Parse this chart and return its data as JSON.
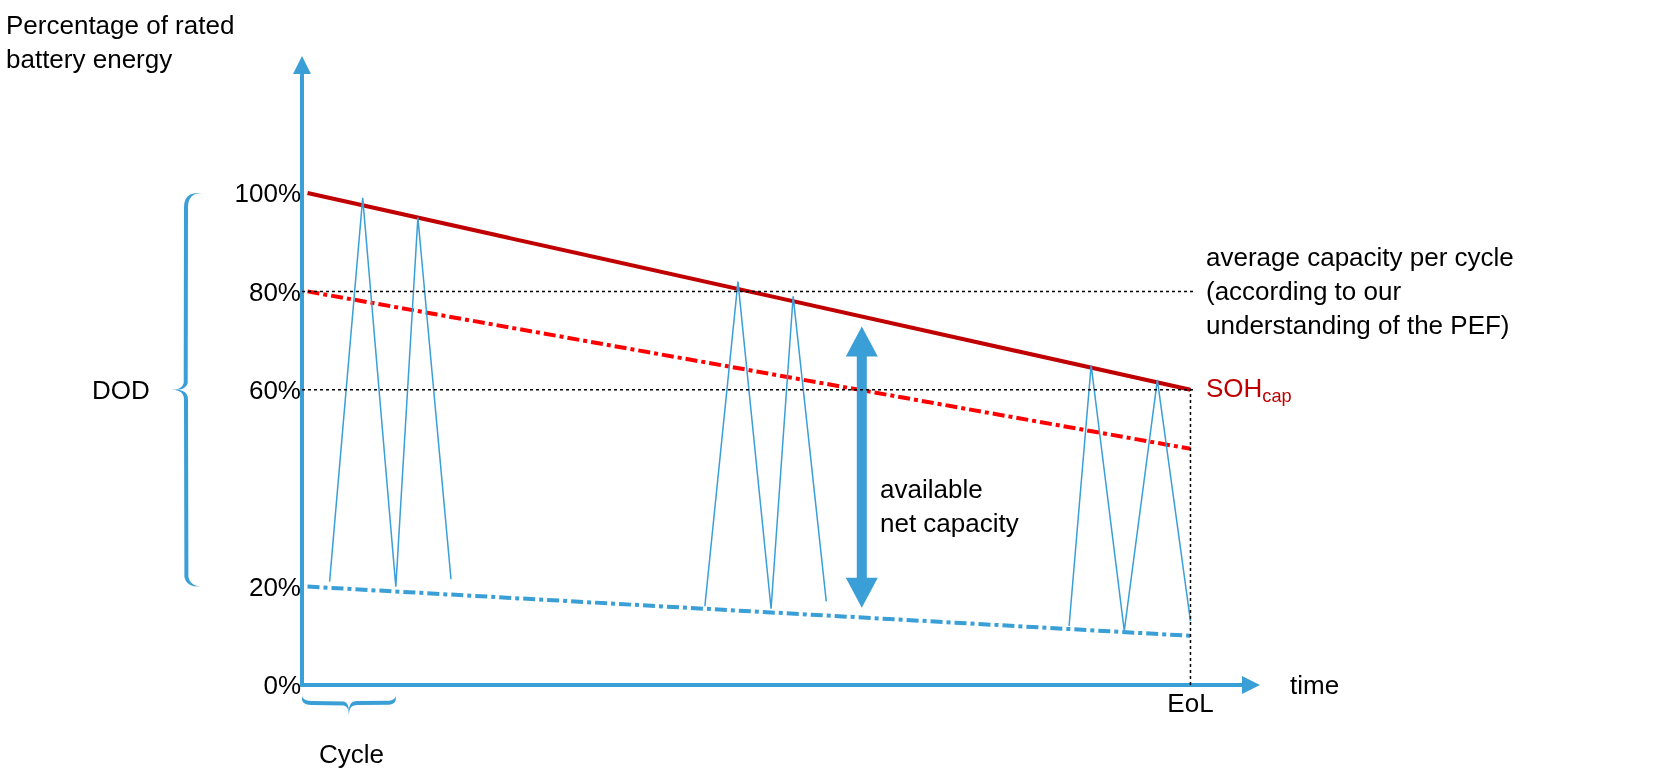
{
  "chart_data": {
    "type": "line",
    "xlabel": "time",
    "ylabel": "Percentage of rated battery energy",
    "categories": [
      null,
      null,
      null,
      null,
      null,
      null,
      null,
      null,
      null,
      null,
      null,
      null,
      null,
      null,
      null,
      null,
      null,
      null,
      null,
      null,
      null,
      null,
      null,
      null,
      null,
      null,
      null,
      null,
      null,
      null,
      null,
      null,
      null,
      null,
      null,
      null,
      null,
      null,
      null,
      null,
      null,
      null,
      null,
      null,
      null,
      null,
      null,
      null,
      null,
      null,
      null,
      null,
      null,
      null,
      null,
      null,
      null,
      null,
      null,
      null,
      null,
      null,
      null,
      null,
      null,
      null,
      null,
      null,
      null,
      null,
      null,
      null,
      null,
      null,
      null,
      null,
      null,
      null,
      null,
      null,
      "EoL"
    ],
    "ylim": [
      0,
      125
    ],
    "yticks": [
      {
        "value": 0,
        "label": "0%"
      },
      {
        "value": 20,
        "label": "20%"
      },
      {
        "value": 60,
        "label": "60%"
      },
      {
        "value": 80,
        "label": "80%"
      },
      {
        "value": 100,
        "label": "100%"
      }
    ],
    "grid": false,
    "legend": false,
    "marker": "none",
    "series": [
      {
        "name": "SOH$_{cap}$",
        "color": "#c00000",
        "line_style": "solid",
        "values": [
          100,
          null,
          null,
          null,
          null,
          null,
          null,
          null,
          null,
          null,
          null,
          null,
          null,
          null,
          null,
          null,
          null,
          null,
          null,
          null,
          null,
          null,
          null,
          null,
          null,
          null,
          null,
          null,
          null,
          null,
          null,
          null,
          null,
          null,
          null,
          null,
          null,
          null,
          null,
          null,
          null,
          null,
          null,
          null,
          null,
          null,
          null,
          null,
          null,
          null,
          null,
          null,
          null,
          null,
          null,
          null,
          null,
          null,
          null,
          null,
          null,
          null,
          null,
          null,
          null,
          null,
          null,
          null,
          null,
          null,
          null,
          null,
          null,
          null,
          null,
          null,
          null,
          null,
          null,
          null,
          60
        ]
      },
      {
        "color": "#ff0000",
        "line_style": "dashed",
        "values": [
          80,
          null,
          null,
          null,
          null,
          null,
          null,
          null,
          null,
          null,
          null,
          null,
          null,
          null,
          null,
          null,
          null,
          null,
          null,
          null,
          null,
          null,
          null,
          null,
          null,
          null,
          null,
          null,
          null,
          null,
          null,
          null,
          null,
          null,
          null,
          null,
          null,
          null,
          null,
          null,
          null,
          null,
          null,
          null,
          null,
          null,
          null,
          null,
          null,
          null,
          null,
          null,
          null,
          null,
          null,
          null,
          null,
          null,
          null,
          null,
          null,
          null,
          null,
          null,
          null,
          null,
          null,
          null,
          null,
          null,
          null,
          null,
          null,
          null,
          null,
          null,
          null,
          null,
          null,
          null,
          48
        ]
      },
      {
        "color": "#3a9fd6",
        "line_style": "dashed",
        "values": [
          20,
          null,
          null,
          null,
          null,
          null,
          null,
          null,
          null,
          null,
          null,
          null,
          null,
          null,
          null,
          null,
          null,
          null,
          null,
          null,
          null,
          null,
          null,
          null,
          null,
          null,
          null,
          null,
          null,
          null,
          null,
          null,
          null,
          null,
          null,
          null,
          null,
          null,
          null,
          null,
          null,
          null,
          null,
          null,
          null,
          null,
          null,
          null,
          null,
          null,
          null,
          null,
          null,
          null,
          null,
          null,
          null,
          null,
          null,
          null,
          null,
          null,
          null,
          null,
          null,
          null,
          null,
          null,
          null,
          null,
          null,
          null,
          null,
          null,
          null,
          null,
          null,
          null,
          null,
          null,
          10
        ]
      },
      {
        "color": "#3a9fd6",
        "line_style": "solid",
        "values": [
          null,
          null,
          21,
          null,
          null,
          99,
          null,
          null,
          20,
          null,
          95,
          null,
          null,
          21.5,
          null,
          null,
          null,
          null,
          null,
          null,
          null,
          null,
          null,
          null,
          null,
          null,
          null,
          null,
          null,
          null,
          null,
          null,
          null,
          null,
          null,
          null,
          null,
          null,
          null,
          null,
          null,
          null,
          null,
          null,
          null,
          null,
          null,
          null,
          null,
          null,
          null,
          null,
          null,
          null,
          null,
          null,
          null,
          null,
          null,
          null,
          null,
          null,
          null,
          null,
          null,
          null,
          null,
          null,
          null,
          null,
          null,
          null,
          null,
          null,
          null,
          null,
          null,
          null,
          null,
          null,
          null
        ]
      },
      {
        "color": "#3a9fd6",
        "line_style": "solid",
        "values": [
          null,
          null,
          null,
          null,
          null,
          null,
          null,
          null,
          null,
          null,
          null,
          null,
          null,
          null,
          null,
          null,
          null,
          null,
          null,
          null,
          null,
          null,
          null,
          null,
          null,
          null,
          null,
          null,
          null,
          null,
          null,
          null,
          null,
          null,
          null,
          null,
          16,
          null,
          null,
          82,
          null,
          null,
          15.5,
          null,
          79,
          null,
          null,
          17,
          null,
          null,
          null,
          null,
          null,
          null,
          null,
          null,
          null,
          null,
          null,
          null,
          null,
          null,
          null,
          null,
          null,
          null,
          null,
          null,
          null,
          null,
          null,
          null,
          null,
          null,
          null,
          null,
          null,
          null,
          null,
          null,
          null
        ]
      },
      {
        "color": "#3a9fd6",
        "line_style": "solid",
        "values": [
          null,
          null,
          null,
          null,
          null,
          null,
          null,
          null,
          null,
          null,
          null,
          null,
          null,
          null,
          null,
          null,
          null,
          null,
          null,
          null,
          null,
          null,
          null,
          null,
          null,
          null,
          null,
          null,
          null,
          null,
          null,
          null,
          null,
          null,
          null,
          null,
          null,
          null,
          null,
          null,
          null,
          null,
          null,
          null,
          null,
          null,
          null,
          null,
          null,
          null,
          null,
          null,
          null,
          null,
          null,
          null,
          null,
          null,
          null,
          null,
          null,
          null,
          null,
          null,
          null,
          null,
          null,
          null,
          null,
          12,
          null,
          65,
          null,
          null,
          11,
          null,
          null,
          62,
          null,
          null,
          13
        ]
      }
    ],
    "ref_lines": [
      {
        "axis": "y",
        "value": 80,
        "color": "#000000",
        "line_style": "dotted"
      },
      {
        "axis": "y",
        "value": 60,
        "color": "#000000",
        "line_style": "dotted"
      },
      {
        "axis": "x",
        "value": "EoL",
        "color": "#000000",
        "line_style": "dotted"
      }
    ],
    "annotations": [
      "DOD",
      "Cycle",
      "available net capacity",
      "average capacity per cycle (according to our understanding of the PEF)"
    ]
  }
}
